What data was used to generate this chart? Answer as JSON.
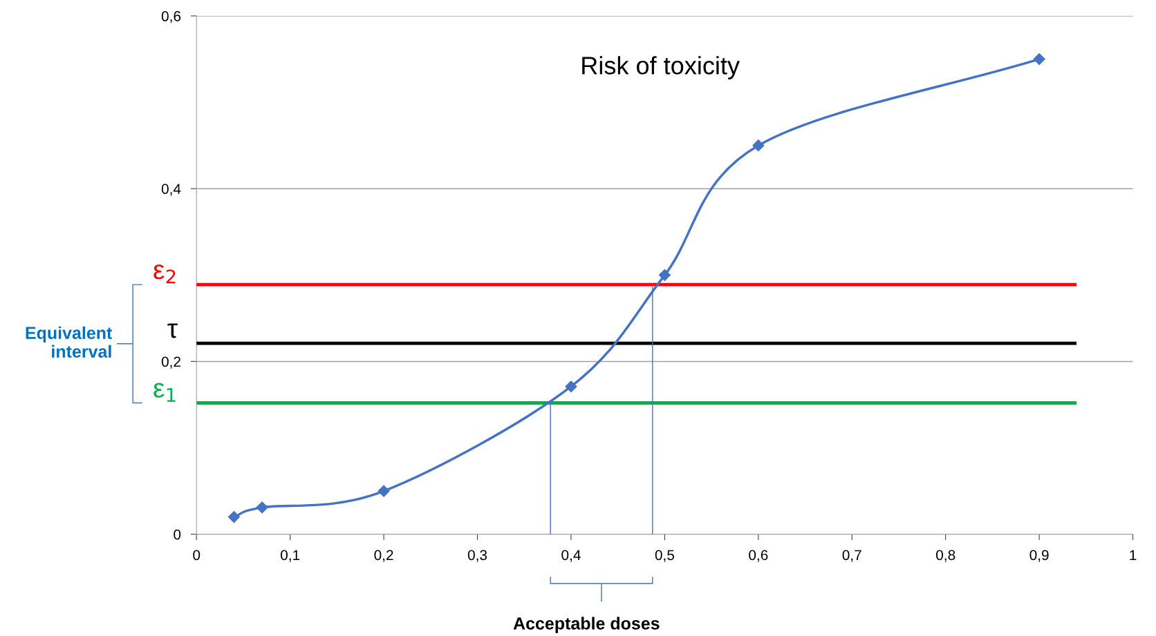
{
  "chart_data": {
    "type": "line",
    "title": "Risk of toxicity",
    "series": [
      {
        "marker": "diamond",
        "color": "#4472c4",
        "x": [
          0.04,
          0.07,
          0.2,
          0.4,
          0.5,
          0.6,
          0.9
        ],
        "values": [
          0.02,
          0.031,
          0.05,
          0.171,
          0.3,
          0.45,
          0.55
        ]
      },
      {
        "marker": "none",
        "color": "#4472c4",
        "x": [
          0.378,
          0.378
        ],
        "values": [
          0,
          0.152
        ]
      },
      {
        "marker": "none",
        "color": "#4472c4",
        "x": [
          0.487,
          0.487
        ],
        "values": [
          0,
          0.289
        ]
      }
    ],
    "xlim": [
      0,
      1
    ],
    "xticks": [
      {
        "value": 0,
        "label": "0"
      },
      {
        "value": 0.1,
        "label": "0,1"
      },
      {
        "value": 0.2,
        "label": "0,2"
      },
      {
        "value": 0.3,
        "label": "0,3"
      },
      {
        "value": 0.4,
        "label": "0,4"
      },
      {
        "value": 0.5,
        "label": "0,5"
      },
      {
        "value": 0.6,
        "label": "0,6"
      },
      {
        "value": 0.7,
        "label": "0,7"
      },
      {
        "value": 0.8,
        "label": "0,8"
      },
      {
        "value": 0.9,
        "label": "0,9"
      },
      {
        "value": 1,
        "label": "1"
      }
    ],
    "ylim": [
      0,
      0.6
    ],
    "yticks": [
      {
        "value": 0,
        "label": "0"
      },
      {
        "value": 0.2,
        "label": "0,2"
      },
      {
        "value": 0.4,
        "label": "0,4"
      },
      {
        "value": 0.6,
        "label": "0,6"
      }
    ],
    "grid": "y",
    "legend": false,
    "ref_lines": [
      {
        "axis": "y",
        "value": 0.289,
        "label": "ε$_{2}$",
        "color": "#ff0000"
      },
      {
        "axis": "y",
        "value": 0.221,
        "label": "τ",
        "color": "#000000"
      },
      {
        "axis": "y",
        "value": 0.152,
        "label": "ε$_{1}$",
        "color": "#00b050"
      }
    ],
    "annotations": [
      "Equivalent interval",
      "Acceptable doses"
    ]
  }
}
